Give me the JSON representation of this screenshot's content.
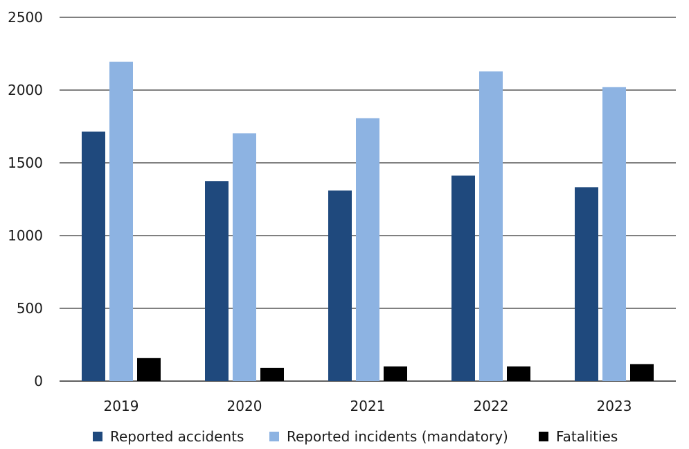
{
  "chart_data": {
    "type": "bar",
    "title": "",
    "xlabel": "",
    "ylabel": "",
    "categories": [
      "2019",
      "2020",
      "2021",
      "2022",
      "2023"
    ],
    "series": [
      {
        "name": "Reported accidents",
        "color": "#1f497d",
        "values": [
          1715,
          1375,
          1310,
          1412,
          1332
        ]
      },
      {
        "name": "Reported incidents (mandatory)",
        "color": "#8db3e2",
        "values": [
          2195,
          1703,
          1807,
          2128,
          2020
        ]
      },
      {
        "name": "Fatalities",
        "color": "#000000",
        "values": [
          158,
          91,
          101,
          101,
          117
        ]
      }
    ],
    "ylim": [
      0,
      2500
    ],
    "yticks": [
      0,
      500,
      1000,
      1500,
      2000,
      2500
    ],
    "grid": true,
    "legend_position": "bottom"
  }
}
